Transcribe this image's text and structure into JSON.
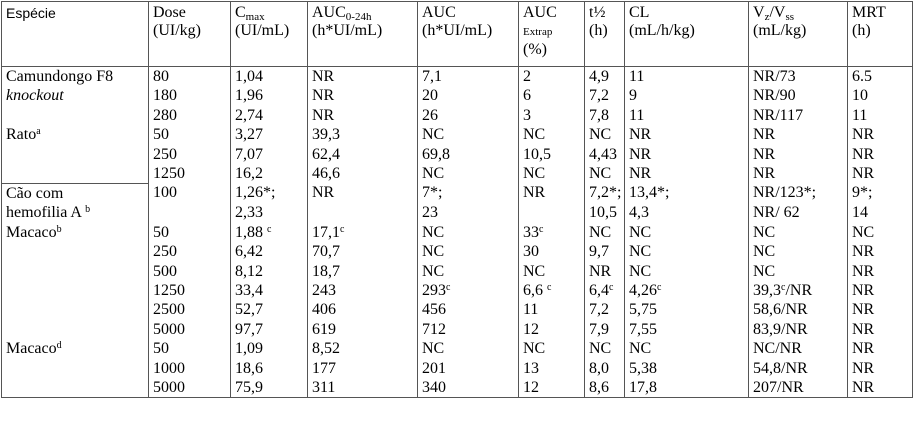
{
  "table": {
    "header": [
      [
        [
          "Espécie"
        ]
      ],
      [
        [
          "Dose"
        ],
        [
          "(UI/kg)"
        ]
      ],
      [
        [
          "C",
          {
            "sub": "max"
          }
        ],
        [
          "(UI/mL)"
        ]
      ],
      [
        [
          "AUC",
          {
            "sub": "0-24h"
          }
        ],
        [
          "(h*UI/mL)"
        ]
      ],
      [
        [
          "AUC"
        ],
        [
          "(h*UI/mL)"
        ]
      ],
      [
        [
          "AUC"
        ],
        [
          {
            "sub": "Extrap"
          }
        ],
        [
          "(%)"
        ]
      ],
      [
        [
          "t½"
        ],
        [
          "(h)"
        ]
      ],
      [
        [
          "CL"
        ],
        [
          "(mL/h/kg)"
        ]
      ],
      [
        [
          "V",
          {
            "sub": "z"
          },
          "/V",
          {
            "sub": "ss"
          }
        ],
        [
          "(mL/kg)"
        ]
      ],
      [
        [
          "MRT"
        ],
        [
          "(h)"
        ]
      ]
    ],
    "rows": [
      [
        [
          "Camundongo F8"
        ],
        "80",
        "1,04",
        "NR",
        "7,1",
        "2",
        "4,9",
        "11",
        "NR/73",
        "6.5"
      ],
      [
        [
          {
            "i": "knockout"
          }
        ],
        "180",
        "1,96",
        "NR",
        "20",
        "6",
        "7,2",
        "9",
        "NR/90",
        "10"
      ],
      [
        null,
        "280",
        "2,74",
        "NR",
        "26",
        "3",
        "7,8",
        "11",
        "NR/117",
        "11"
      ],
      [
        [
          "Rato",
          {
            "sup": "a"
          }
        ],
        "50",
        "3,27",
        "39,3",
        "NC",
        "NC",
        "NC",
        "NR",
        "NR",
        "NR"
      ],
      [
        null,
        "250",
        "7,07",
        "62,4",
        "69,8",
        "10,5",
        "4,43",
        "NR",
        "NR",
        "NR"
      ],
      [
        null,
        "1250",
        "16,2",
        "46,6",
        "NC",
        "NC",
        "NC",
        "NR",
        "NR",
        "NR"
      ],
      [
        [
          "Cão com"
        ],
        "100",
        "1,26*;",
        "NR",
        "7*;",
        "NR",
        "7,2*;",
        "13,4*;",
        "NR/123*;",
        "9*;"
      ],
      [
        [
          "hemofilia A ",
          {
            "sup": "b"
          }
        ],
        null,
        "2,33",
        null,
        "23",
        null,
        "10,5",
        "4,3",
        "NR/ 62",
        "14"
      ],
      [
        [
          "Macaco",
          {
            "sup": "b"
          }
        ],
        "50",
        [
          "1,88 ",
          {
            "sup": "c"
          }
        ],
        [
          "17,1",
          {
            "sup": "c"
          }
        ],
        "NC",
        [
          "33",
          {
            "sup": "c"
          }
        ],
        "NC",
        "NC",
        "NC",
        "NC"
      ],
      [
        null,
        "250",
        "6,42",
        "70,7",
        "NC",
        "30",
        "9,7",
        "NC",
        "NC",
        "NR"
      ],
      [
        null,
        "500",
        "8,12",
        "18,7",
        "NC",
        "NC",
        "NR",
        "NC",
        "NC",
        "NR"
      ],
      [
        null,
        "1250",
        "33,4",
        "243",
        [
          "293",
          {
            "sup": "c"
          }
        ],
        [
          "6,6 ",
          {
            "sup": "c"
          }
        ],
        [
          "6,4",
          {
            "sup": "c"
          }
        ],
        [
          "4,26",
          {
            "sup": "c"
          }
        ],
        [
          "39,3",
          {
            "sup": "c"
          },
          "/NR"
        ],
        "NR"
      ],
      [
        null,
        "2500",
        "52,7",
        "406",
        "456",
        "11",
        "7,2",
        "5,75",
        "58,6/NR",
        "NR"
      ],
      [
        null,
        "5000",
        "97,7",
        "619",
        "712",
        "12",
        "7,9",
        "7,55",
        "83,9/NR",
        "NR"
      ],
      [
        [
          "Macaco",
          {
            "sup": "d"
          }
        ],
        "50",
        "1,09",
        "8,52",
        "NC",
        "NC",
        "NC",
        "NC",
        "NC/NR",
        "NR"
      ],
      [
        null,
        "1000",
        "18,6",
        "177",
        "201",
        "13",
        "8,0",
        "5,38",
        "54,8/NR",
        "NR"
      ],
      [
        null,
        "5000",
        "75,9",
        "311",
        "340",
        "12",
        "8,6",
        "17,8",
        "207/NR",
        "NR"
      ]
    ]
  }
}
